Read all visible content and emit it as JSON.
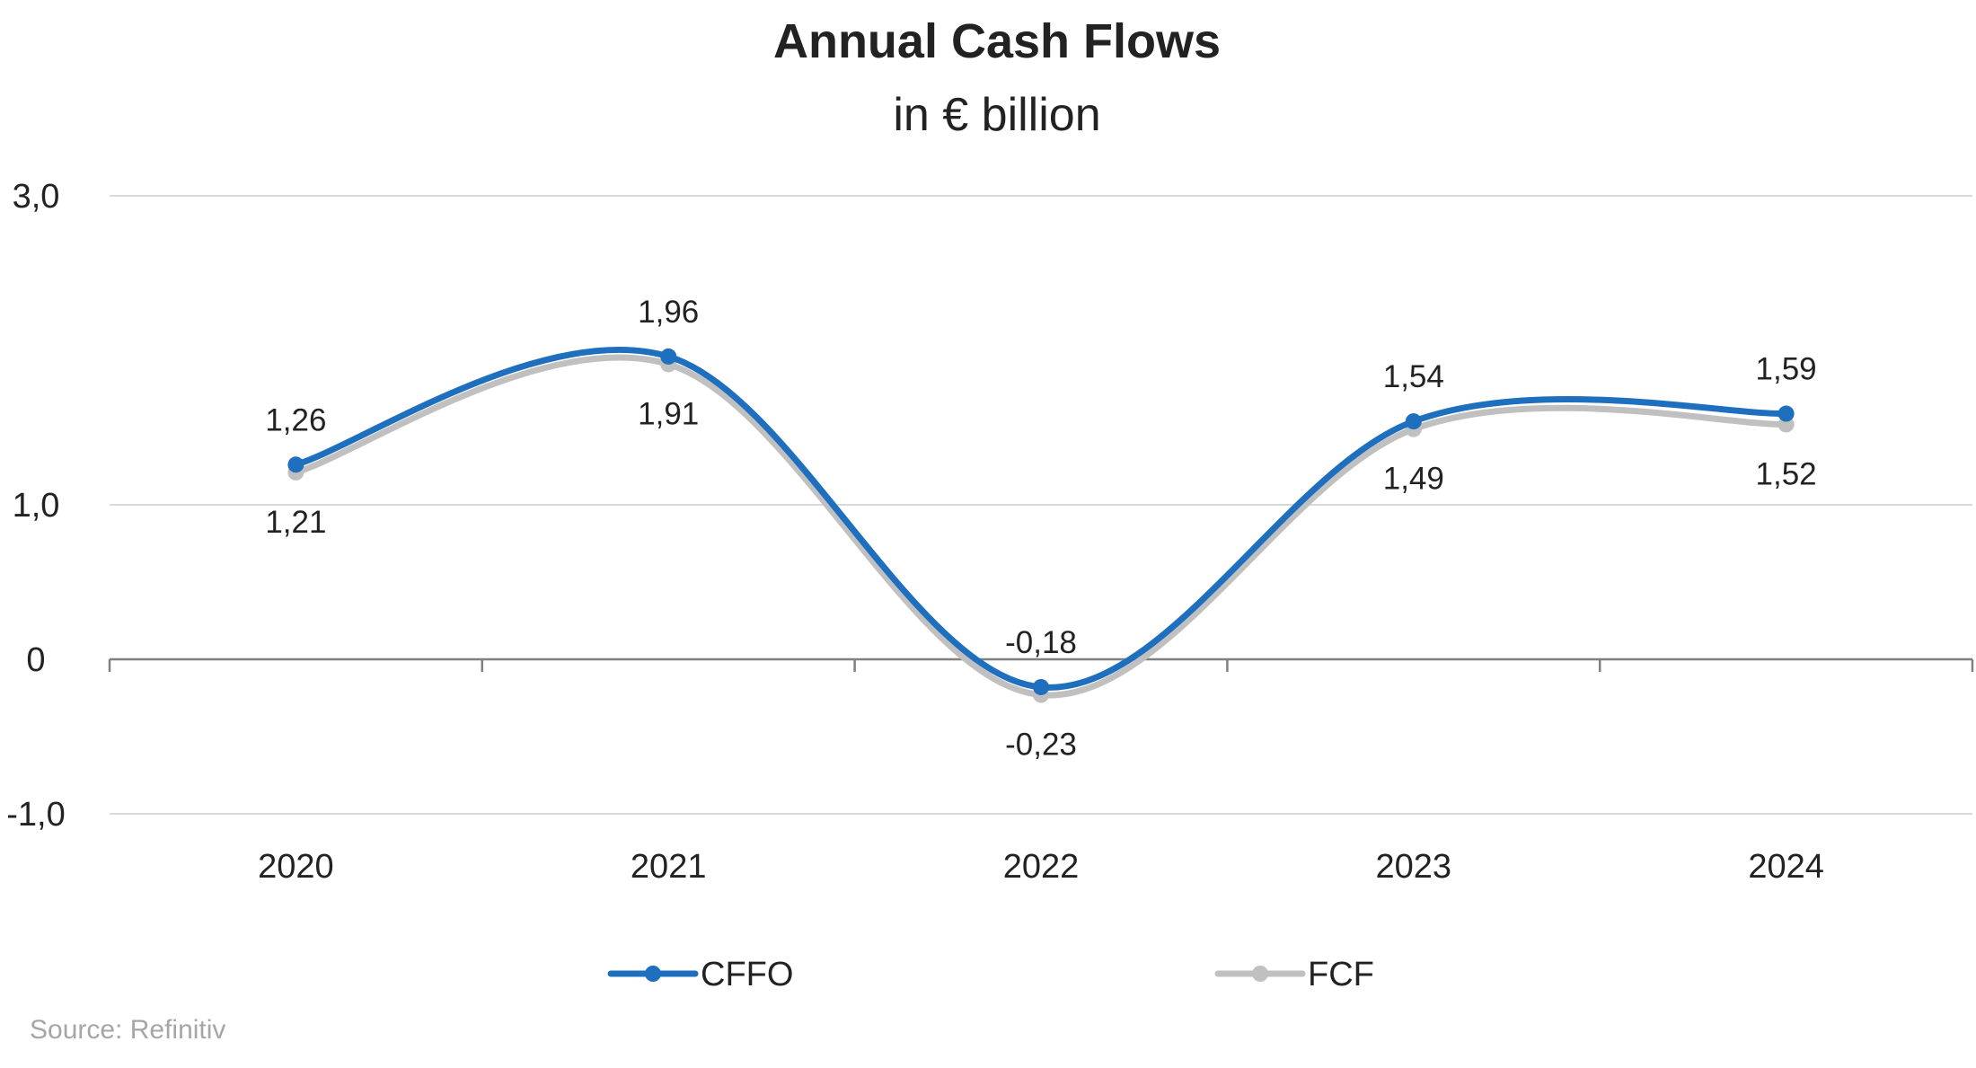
{
  "chart_data": {
    "type": "line",
    "title": "Annual Cash Flows",
    "subtitle": "in € billion",
    "categories": [
      "2020",
      "2021",
      "2022",
      "2023",
      "2024"
    ],
    "series": [
      {
        "name": "CFFO",
        "values": [
          1.26,
          1.96,
          -0.18,
          1.54,
          1.59
        ],
        "labels": [
          "1,26",
          "1,96",
          "-0,18",
          "1,54",
          "1,59"
        ],
        "color": "#1f6fbf",
        "label_position": "above"
      },
      {
        "name": "FCF",
        "values": [
          1.21,
          1.91,
          -0.23,
          1.49,
          1.52
        ],
        "labels": [
          "1,21",
          "1,91",
          "-0,23",
          "1,49",
          "1,52"
        ],
        "color": "#c0c0c0",
        "label_position": "below"
      }
    ],
    "y_ticks": [
      {
        "value": 3.0,
        "label": "3,0"
      },
      {
        "value": 1.0,
        "label": "1,0"
      },
      {
        "value": 0,
        "label": "0"
      },
      {
        "value": -1.0,
        "label": "-1,0"
      }
    ],
    "ylim": [
      -1.0,
      3.0
    ],
    "smooth": true,
    "grid": true,
    "legend_placement": "bottom-center",
    "source": "Source: Refinitiv"
  }
}
